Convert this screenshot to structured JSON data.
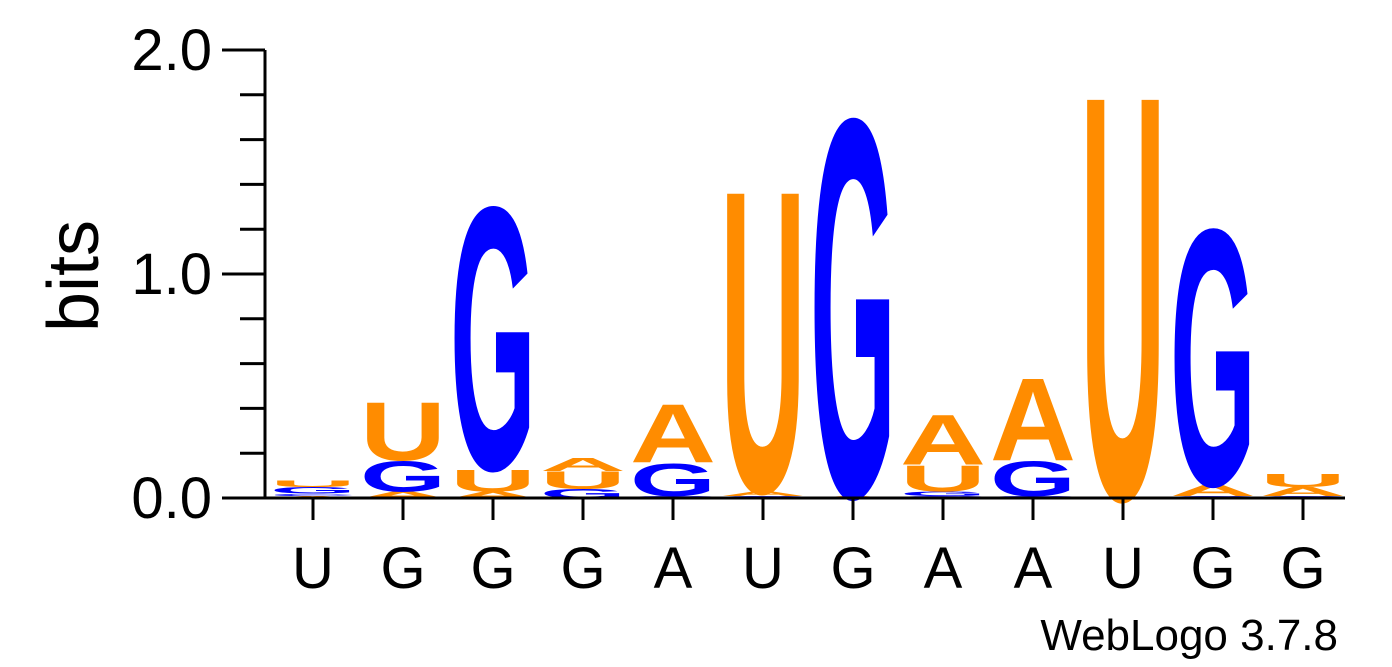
{
  "chart_data": {
    "type": "sequence_logo",
    "ylabel": "bits",
    "ylim": [
      0,
      2
    ],
    "y_ticks": [
      {
        "value": 0,
        "label": "0.0"
      },
      {
        "value": 1,
        "label": "1.0"
      },
      {
        "value": 2,
        "label": "2.0"
      }
    ],
    "x_labels": [
      "U",
      "G",
      "G",
      "G",
      "A",
      "U",
      "G",
      "A",
      "A",
      "U",
      "G",
      "G"
    ],
    "positions": [
      {
        "label": "U",
        "stack": [
          {
            "letter": "A",
            "height": 0.01
          },
          {
            "letter": "C",
            "height": 0.01
          },
          {
            "letter": "G",
            "height": 0.03
          },
          {
            "letter": "U",
            "height": 0.03
          }
        ]
      },
      {
        "label": "G",
        "stack": [
          {
            "letter": "A",
            "height": 0.03
          },
          {
            "letter": "G",
            "height": 0.14
          },
          {
            "letter": "U",
            "height": 0.27
          }
        ]
      },
      {
        "label": "G",
        "stack": [
          {
            "letter": "A",
            "height": 0.03
          },
          {
            "letter": "U",
            "height": 0.1
          },
          {
            "letter": "G",
            "height": 1.21
          }
        ]
      },
      {
        "label": "G",
        "stack": [
          {
            "letter": "G",
            "height": 0.04
          },
          {
            "letter": "U",
            "height": 0.08
          },
          {
            "letter": "A",
            "height": 0.06
          }
        ]
      },
      {
        "label": "A",
        "stack": [
          {
            "letter": "C",
            "height": 0.01
          },
          {
            "letter": "G",
            "height": 0.15
          },
          {
            "letter": "A",
            "height": 0.27
          }
        ]
      },
      {
        "label": "U",
        "stack": [
          {
            "letter": "C",
            "height": 0.01
          },
          {
            "letter": "A",
            "height": 0.02
          },
          {
            "letter": "U",
            "height": 1.39
          }
        ]
      },
      {
        "label": "G",
        "stack": [
          {
            "letter": "A",
            "height": 0.01
          },
          {
            "letter": "G",
            "height": 1.74
          }
        ]
      },
      {
        "label": "A",
        "stack": [
          {
            "letter": "C",
            "height": 0.01
          },
          {
            "letter": "G",
            "height": 0.02
          },
          {
            "letter": "U",
            "height": 0.12
          },
          {
            "letter": "A",
            "height": 0.23
          }
        ]
      },
      {
        "label": "A",
        "stack": [
          {
            "letter": "C",
            "height": 0.01
          },
          {
            "letter": "G",
            "height": 0.16
          },
          {
            "letter": "A",
            "height": 0.38
          }
        ]
      },
      {
        "label": "U",
        "stack": [
          {
            "letter": "U",
            "height": 1.86
          }
        ]
      },
      {
        "label": "G",
        "stack": [
          {
            "letter": "C",
            "height": 0.01
          },
          {
            "letter": "A",
            "height": 0.05
          },
          {
            "letter": "G",
            "height": 1.18
          }
        ]
      },
      {
        "label": "G",
        "stack": [
          {
            "letter": "C",
            "height": 0.01
          },
          {
            "letter": "A",
            "height": 0.04
          },
          {
            "letter": "U",
            "height": 0.06
          }
        ]
      }
    ]
  },
  "colors": {
    "A": "#ff8c00",
    "U": "#ff8c00",
    "G": "#0000ff",
    "C": "#0000ff"
  },
  "credit": "WebLogo 3.7.8"
}
